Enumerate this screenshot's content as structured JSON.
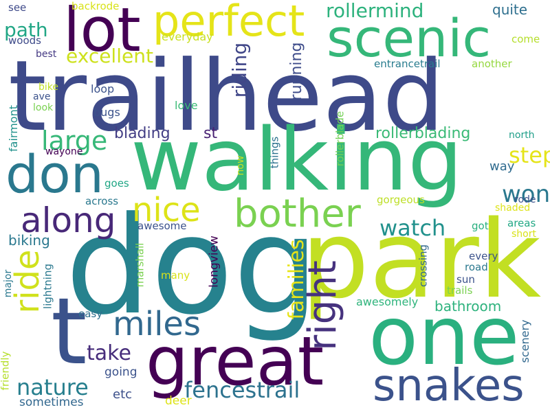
{
  "words": [
    {
      "text": "trailhead",
      "color": "#3e4a89"
    },
    {
      "text": "walking",
      "color": "#35b779"
    },
    {
      "text": "dog",
      "color": "#26828e"
    },
    {
      "text": "park",
      "color": "#c2df23"
    },
    {
      "text": "one",
      "color": "#2ab07f"
    },
    {
      "text": "great",
      "color": "#440154"
    },
    {
      "text": "lot",
      "color": "#440154"
    },
    {
      "text": "scenic",
      "color": "#35b779"
    },
    {
      "text": "perfect",
      "color": "#e5e419"
    },
    {
      "text": "don",
      "color": "#2a788e"
    },
    {
      "text": "t",
      "color": "#3b528b"
    },
    {
      "text": "snakes",
      "color": "#3b528b"
    },
    {
      "text": "bother",
      "color": "#7ad151"
    },
    {
      "text": "right",
      "color": "#46327e"
    },
    {
      "text": "miles",
      "color": "#31688e"
    },
    {
      "text": "nice",
      "color": "#dde318"
    },
    {
      "text": "along",
      "color": "#482878"
    },
    {
      "text": "ride",
      "color": "#d0e11c"
    },
    {
      "text": "fencestrail",
      "color": "#2c728e"
    },
    {
      "text": "families",
      "color": "#e7e419"
    },
    {
      "text": "nature",
      "color": "#277f8e"
    },
    {
      "text": "watch",
      "color": "#21918c"
    },
    {
      "text": "large",
      "color": "#37b878"
    },
    {
      "text": "take",
      "color": "#472d7b"
    },
    {
      "text": "won",
      "color": "#2a788e"
    },
    {
      "text": "path",
      "color": "#21a685"
    },
    {
      "text": "excellent",
      "color": "#cde11d"
    },
    {
      "text": "rollermind",
      "color": "#2db27d"
    },
    {
      "text": "riding",
      "color": "#404688"
    },
    {
      "text": "running",
      "color": "#3e4c8a"
    },
    {
      "text": "step",
      "color": "#e5e419"
    },
    {
      "text": "blading",
      "color": "#433e85"
    },
    {
      "text": "st",
      "color": "#482173"
    },
    {
      "text": "rollerblading",
      "color": "#3aba76"
    },
    {
      "text": "quite",
      "color": "#2e6f8e"
    },
    {
      "text": "bathroom",
      "color": "#2db27d"
    },
    {
      "text": "way",
      "color": "#2f6b8e"
    },
    {
      "text": "biking",
      "color": "#2a788e"
    },
    {
      "text": "awesomely",
      "color": "#2fb47c"
    },
    {
      "text": "etc",
      "color": "#3c508b"
    },
    {
      "text": "sometimes",
      "color": "#31678e"
    },
    {
      "text": "deer",
      "color": "#dde318"
    },
    {
      "text": "going",
      "color": "#3b528b"
    },
    {
      "text": "scenery",
      "color": "#31688e"
    },
    {
      "text": "everyday",
      "color": "#c8e020"
    },
    {
      "text": "entrancetrail",
      "color": "#287c8e"
    },
    {
      "text": "another",
      "color": "#95d840"
    },
    {
      "text": "come",
      "color": "#b5de2b"
    },
    {
      "text": "see",
      "color": "#3e4989"
    },
    {
      "text": "backrode",
      "color": "#d8e219"
    },
    {
      "text": "woods",
      "color": "#3e4a89"
    },
    {
      "text": "best",
      "color": "#443983"
    },
    {
      "text": "loop",
      "color": "#3b528b"
    },
    {
      "text": "bike",
      "color": "#c0df25"
    },
    {
      "text": "ave",
      "color": "#3b528b"
    },
    {
      "text": "look",
      "color": "#7ad151"
    },
    {
      "text": "bugs",
      "color": "#3b528b"
    },
    {
      "text": "love",
      "color": "#3aba76"
    },
    {
      "text": "fairmont",
      "color": "#21918c"
    },
    {
      "text": "wayone",
      "color": "#440154"
    },
    {
      "text": "north",
      "color": "#1f9e89"
    },
    {
      "text": "rode",
      "color": "#3b528b"
    },
    {
      "text": "shaded",
      "color": "#dde318"
    },
    {
      "text": "areas",
      "color": "#22a884"
    },
    {
      "text": "short",
      "color": "#d8e219"
    },
    {
      "text": "got",
      "color": "#29af7f"
    },
    {
      "text": "every",
      "color": "#3b528b"
    },
    {
      "text": "road",
      "color": "#2a788e"
    },
    {
      "text": "sun",
      "color": "#3b528b"
    },
    {
      "text": "trails",
      "color": "#7ad151"
    },
    {
      "text": "crossing",
      "color": "#31688e"
    },
    {
      "text": "gorgeous",
      "color": "#bddf26"
    },
    {
      "text": "awesome",
      "color": "#3b528b"
    },
    {
      "text": "across",
      "color": "#2a788e"
    },
    {
      "text": "goes",
      "color": "#21a685"
    },
    {
      "text": "now",
      "color": "#c8e020"
    },
    {
      "text": "things",
      "color": "#2c728e"
    },
    {
      "text": "rollerblade",
      "color": "#73d056"
    },
    {
      "text": "longview",
      "color": "#440154"
    },
    {
      "text": "marshall",
      "color": "#7ad151"
    },
    {
      "text": "many",
      "color": "#d8e219"
    },
    {
      "text": "major",
      "color": "#2a788e"
    },
    {
      "text": "lightning",
      "color": "#2a788e"
    },
    {
      "text": "easy",
      "color": "#2e6f8e"
    },
    {
      "text": "friendly",
      "color": "#b5de2b"
    }
  ]
}
